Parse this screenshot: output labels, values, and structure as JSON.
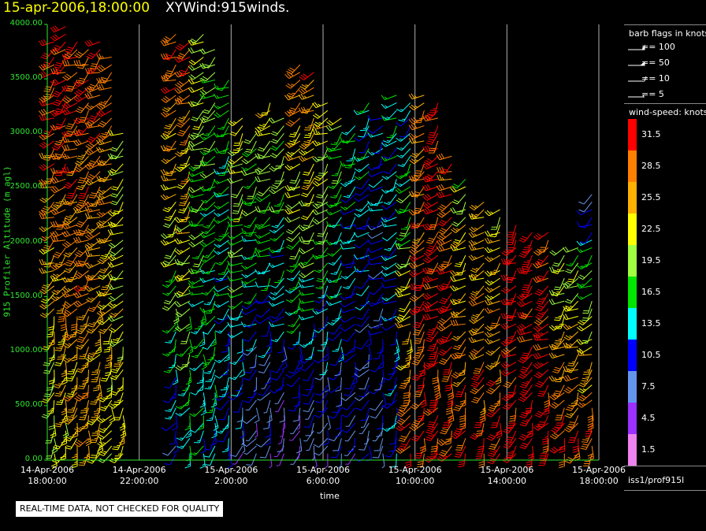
{
  "header": {
    "date_time": "15-apr-2006,18:00:00",
    "product": "XYWind:915winds."
  },
  "chart_data": {
    "type": "scatter",
    "plot_kind": "wind-barb time-height profile",
    "title": "XYWind:915winds.",
    "xlabel": "time",
    "ylabel": "915 Profiler Altitude (m agl)",
    "ylim": [
      0,
      4000
    ],
    "xlim_hours": [
      0,
      24
    ],
    "grid": "vertical lines at each 4-hour tick",
    "x_ticks": [
      {
        "hour": 0,
        "line1": "14-Apr-2006",
        "line2": "18:00:00"
      },
      {
        "hour": 4,
        "line1": "14-Apr-2006",
        "line2": "22:00:00"
      },
      {
        "hour": 8,
        "line1": "15-Apr-2006",
        "line2": "2:00:00"
      },
      {
        "hour": 12,
        "line1": "15-Apr-2006",
        "line2": "6:00:00"
      },
      {
        "hour": 16,
        "line1": "15-Apr-2006",
        "line2": "10:00:00"
      },
      {
        "hour": 20,
        "line1": "15-Apr-2006",
        "line2": "14:00:00"
      },
      {
        "hour": 24,
        "line1": "15-Apr-2006",
        "line2": "18:00:00"
      }
    ],
    "y_ticks": [
      {
        "value": 0,
        "label": "0.00"
      },
      {
        "value": 500,
        "label": "500.00"
      },
      {
        "value": 1000,
        "label": "1000.00"
      },
      {
        "value": 1500,
        "label": "1500.00"
      },
      {
        "value": 2000,
        "label": "2000.00"
      },
      {
        "value": 2500,
        "label": "2500.00"
      },
      {
        "value": 3000,
        "label": "3000.00"
      },
      {
        "value": 3500,
        "label": "3500.00"
      },
      {
        "value": 4000,
        "label": "4000.00"
      }
    ],
    "profiles": [
      {
        "hour": 0.3,
        "top": 3900,
        "base": 60,
        "spd_low": 20,
        "spd_high": 32
      },
      {
        "hour": 0.8,
        "top": 4000,
        "base": 60,
        "spd_low": 22,
        "spd_high": 32
      },
      {
        "hour": 1.3,
        "top": 3900,
        "base": 60,
        "spd_low": 24,
        "spd_high": 31
      },
      {
        "hour": 1.8,
        "top": 3800,
        "base": 60,
        "spd_low": 26,
        "spd_high": 30
      },
      {
        "hour": 2.3,
        "top": 3900,
        "base": 60,
        "spd_low": 23,
        "spd_high": 30
      },
      {
        "hour": 2.8,
        "top": 3700,
        "base": 60,
        "spd_low": 21,
        "spd_high": 29
      },
      {
        "hour": 3.3,
        "top": 3000,
        "base": 60,
        "spd_low": 24,
        "spd_high": 20
      },
      {
        "hour": 5.6,
        "top": 3950,
        "base": 60,
        "spd_low": 10,
        "spd_high": 31
      },
      {
        "hour": 6.2,
        "top": 3900,
        "base": 60,
        "spd_low": 14,
        "spd_high": 30
      },
      {
        "hour": 6.8,
        "top": 3950,
        "base": 60,
        "spd_low": 13,
        "spd_high": 21
      },
      {
        "hour": 7.3,
        "top": 3800,
        "base": 60,
        "spd_low": 12,
        "spd_high": 20
      },
      {
        "hour": 7.9,
        "top": 3500,
        "base": 60,
        "spd_low": 10,
        "spd_high": 18
      },
      {
        "hour": 8.5,
        "top": 3200,
        "base": 60,
        "spd_low": 8,
        "spd_high": 24
      },
      {
        "hour": 9.1,
        "top": 3000,
        "base": 60,
        "spd_low": 6,
        "spd_high": 20
      },
      {
        "hour": 9.7,
        "top": 3300,
        "base": 60,
        "spd_low": 6,
        "spd_high": 23
      },
      {
        "hour": 10.3,
        "top": 3200,
        "base": 60,
        "spd_low": 5,
        "spd_high": 21
      },
      {
        "hour": 11.0,
        "top": 3650,
        "base": 60,
        "spd_low": 5,
        "spd_high": 30
      },
      {
        "hour": 11.6,
        "top": 3600,
        "base": 60,
        "spd_low": 6,
        "spd_high": 29
      },
      {
        "hour": 12.2,
        "top": 3300,
        "base": 60,
        "spd_low": 6,
        "spd_high": 24
      },
      {
        "hour": 12.8,
        "top": 3200,
        "base": 60,
        "spd_low": 7,
        "spd_high": 20
      },
      {
        "hour": 13.4,
        "top": 3100,
        "base": 60,
        "spd_low": 7,
        "spd_high": 16
      },
      {
        "hour": 14.0,
        "top": 3300,
        "base": 60,
        "spd_low": 8,
        "spd_high": 14
      },
      {
        "hour": 14.6,
        "top": 3200,
        "base": 60,
        "spd_low": 8,
        "spd_high": 12
      },
      {
        "hour": 15.2,
        "top": 3400,
        "base": 60,
        "spd_low": 10,
        "spd_high": 15
      },
      {
        "hour": 15.8,
        "top": 3300,
        "base": 60,
        "spd_low": 30,
        "spd_high": 11
      },
      {
        "hour": 16.4,
        "top": 3400,
        "base": 60,
        "spd_low": 31,
        "spd_high": 27
      },
      {
        "hour": 17.0,
        "top": 3300,
        "base": 60,
        "spd_low": 32,
        "spd_high": 31
      },
      {
        "hour": 17.6,
        "top": 2800,
        "base": 60,
        "spd_low": 32,
        "spd_high": 29
      },
      {
        "hour": 18.2,
        "top": 2600,
        "base": 60,
        "spd_low": 31,
        "spd_high": 20
      },
      {
        "hour": 19.0,
        "top": 2400,
        "base": 60,
        "spd_low": 31,
        "spd_high": 23
      },
      {
        "hour": 19.7,
        "top": 2300,
        "base": 60,
        "spd_low": 32,
        "spd_high": 22
      },
      {
        "hour": 20.4,
        "top": 2200,
        "base": 60,
        "spd_low": 32,
        "spd_high": 32
      },
      {
        "hour": 21.1,
        "top": 2150,
        "base": 60,
        "spd_low": 32,
        "spd_high": 32
      },
      {
        "hour": 21.8,
        "top": 2100,
        "base": 60,
        "spd_low": 32,
        "spd_high": 31
      },
      {
        "hour": 22.5,
        "top": 2000,
        "base": 60,
        "spd_low": 32,
        "spd_high": 19
      },
      {
        "hour": 23.1,
        "top": 2000,
        "base": 60,
        "spd_low": 31,
        "spd_high": 18
      },
      {
        "hour": 23.7,
        "top": 2500,
        "base": 60,
        "spd_low": 31,
        "spd_high": 9
      }
    ]
  },
  "legend": {
    "barb_header": "barb flags in knots",
    "barb_flags": [
      {
        "label": "== 100"
      },
      {
        "label": "== 50"
      },
      {
        "label": "== 10"
      },
      {
        "label": "== 5"
      }
    ],
    "speed_header": "wind-speed: knots",
    "speed_scale": [
      {
        "label": "31.5",
        "color": "#ff0000"
      },
      {
        "label": "28.5",
        "color": "#ff8000"
      },
      {
        "label": "25.5",
        "color": "#ffb000"
      },
      {
        "label": "22.5",
        "color": "#ffff00"
      },
      {
        "label": "19.5",
        "color": "#a0ff40"
      },
      {
        "label": "16.5",
        "color": "#00e600"
      },
      {
        "label": "13.5",
        "color": "#00ffff"
      },
      {
        "label": "10.5",
        "color": "#0000ff"
      },
      {
        "label": "7.5",
        "color": "#6495ed"
      },
      {
        "label": "4.5",
        "color": "#9b30ff"
      },
      {
        "label": "1.5",
        "color": "#ee82ee"
      }
    ]
  },
  "source": "iss1/prof915l",
  "notice": "REAL-TIME DATA, NOT CHECKED FOR QUALITY",
  "colors": {
    "axis": "#2ee62e",
    "gridline": "#b0b0b0",
    "background": "#000000"
  }
}
